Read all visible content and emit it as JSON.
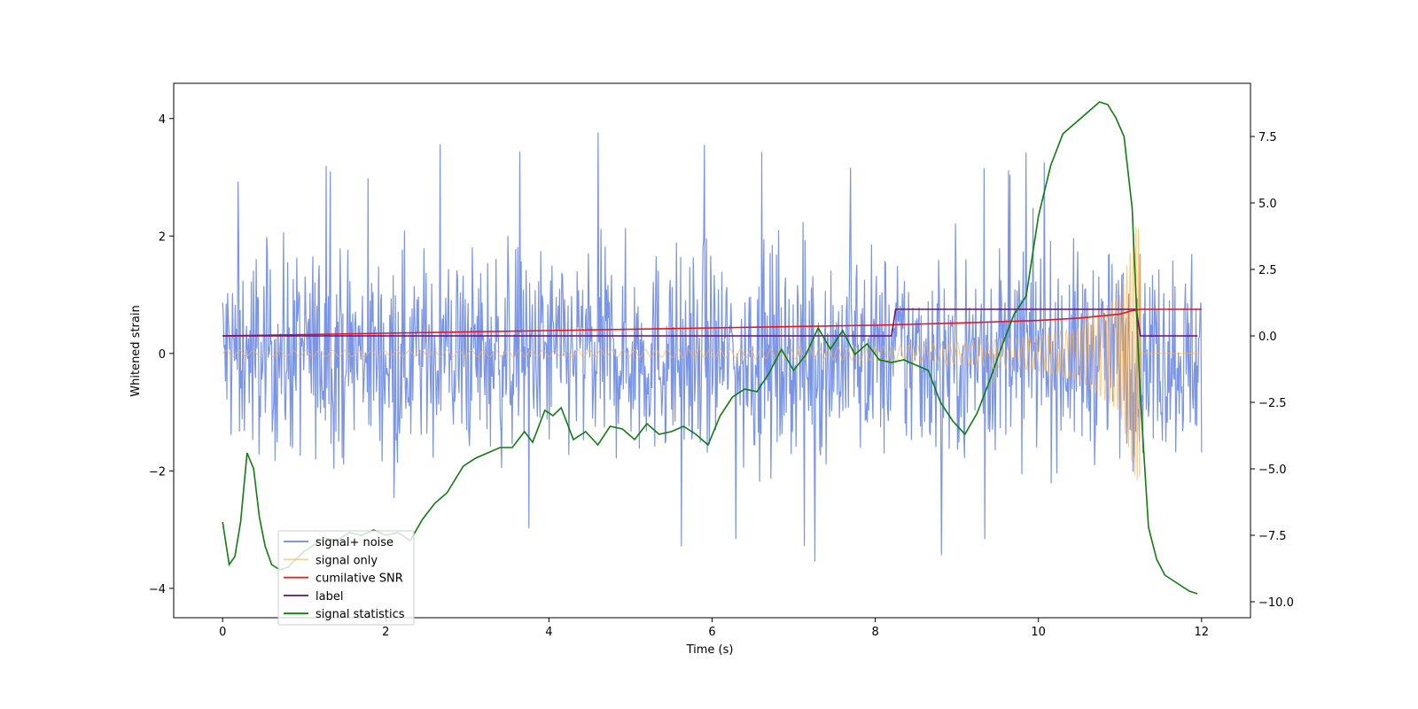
{
  "chart_data": {
    "type": "line",
    "xlabel": "Time (s)",
    "ylabel": "Whitened strain",
    "xlim": [
      -0.6,
      12.6
    ],
    "ylim": [
      -4.5,
      4.6
    ],
    "y2lim": [
      -10.6,
      9.5
    ],
    "x_ticks": [
      0,
      2,
      4,
      6,
      8,
      10,
      12
    ],
    "x_tick_labels": [
      "0",
      "2",
      "4",
      "6",
      "8",
      "10",
      "12"
    ],
    "y_ticks": [
      -4,
      -2,
      0,
      2,
      4
    ],
    "y_tick_labels": [
      "−4",
      "−2",
      "0",
      "2",
      "4"
    ],
    "y2_ticks": [
      -10.0,
      -7.5,
      -5.0,
      -2.5,
      0.0,
      2.5,
      5.0,
      7.5
    ],
    "y2_tick_labels": [
      "−10.0",
      "−7.5",
      "−5.0",
      "−2.5",
      "0.0",
      "2.5",
      "5.0",
      "7.5"
    ],
    "legend_position": "lower-left",
    "grid": false,
    "series": [
      {
        "name": "signal+ noise",
        "color": "#6b88e6",
        "axis": "left",
        "style": "noise",
        "x_range": [
          0,
          12
        ],
        "approx_std": 0.85,
        "envelope_upper": [
          [
            0,
            2.4
          ],
          [
            0.5,
            4.15
          ],
          [
            1,
            3.3
          ],
          [
            2,
            3.5
          ],
          [
            4,
            3.9
          ],
          [
            5.8,
            4.1
          ],
          [
            8,
            3.3
          ],
          [
            10,
            3.5
          ],
          [
            12,
            2.9
          ]
        ],
        "envelope_lower": [
          [
            0,
            -2.1
          ],
          [
            1,
            -3.3
          ],
          [
            2,
            -3.0
          ],
          [
            4,
            -3.1
          ],
          [
            6.3,
            -3.6
          ],
          [
            8.7,
            -3.7
          ],
          [
            10.4,
            -3.3
          ],
          [
            12,
            -2.9
          ]
        ]
      },
      {
        "name": "signal only",
        "color": "#ffb347",
        "axis": "left",
        "style": "chirp",
        "x_range": [
          0,
          12
        ],
        "amplitude_points": [
          [
            0,
            0.05
          ],
          [
            2,
            0.05
          ],
          [
            4,
            0.06
          ],
          [
            6,
            0.07
          ],
          [
            8,
            0.12
          ],
          [
            9,
            0.18
          ],
          [
            10,
            0.3
          ],
          [
            10.5,
            0.45
          ],
          [
            11,
            1.0
          ],
          [
            11.2,
            2.2
          ]
        ],
        "cutoff": 11.25,
        "after_cutoff_value": 0.0
      },
      {
        "name": "cumilative SNR",
        "color": "#e8141a",
        "axis": "right",
        "x": [
          0,
          2,
          4,
          6,
          8,
          9,
          10,
          10.5,
          11,
          11.15,
          11.25,
          12
        ],
        "y": [
          0.0,
          0.1,
          0.2,
          0.3,
          0.4,
          0.48,
          0.58,
          0.67,
          0.82,
          0.95,
          1.0,
          1.0
        ]
      },
      {
        "name": "label",
        "color": "#6b0f7a",
        "axis": "right",
        "x": [
          0,
          8.2,
          8.25,
          11.2,
          11.25,
          11.95
        ],
        "y": [
          0.0,
          0.0,
          1.0,
          1.0,
          0.0,
          0.0
        ]
      },
      {
        "name": "signal statistics",
        "color": "#0d7d0d",
        "axis": "right",
        "x": [
          0,
          0.08,
          0.15,
          0.22,
          0.3,
          0.38,
          0.45,
          0.52,
          0.6,
          0.7,
          0.8,
          0.9,
          1.0,
          1.1,
          1.25,
          1.4,
          1.55,
          1.7,
          1.85,
          2.0,
          2.15,
          2.3,
          2.45,
          2.6,
          2.75,
          2.85,
          2.95,
          3.1,
          3.25,
          3.4,
          3.55,
          3.7,
          3.8,
          3.95,
          4.05,
          4.15,
          4.3,
          4.45,
          4.6,
          4.75,
          4.9,
          5.05,
          5.2,
          5.35,
          5.5,
          5.65,
          5.8,
          5.95,
          6.1,
          6.25,
          6.4,
          6.55,
          6.7,
          6.85,
          7.0,
          7.15,
          7.3,
          7.45,
          7.6,
          7.75,
          7.9,
          8.05,
          8.2,
          8.35,
          8.5,
          8.65,
          8.8,
          8.95,
          9.1,
          9.25,
          9.4,
          9.55,
          9.7,
          9.85,
          10.0,
          10.15,
          10.3,
          10.45,
          10.6,
          10.75,
          10.85,
          10.95,
          11.05,
          11.15,
          11.25,
          11.35,
          11.45,
          11.55,
          11.7,
          11.85,
          11.95
        ],
        "y": [
          -7.0,
          -8.6,
          -8.3,
          -7.0,
          -4.4,
          -5.0,
          -6.8,
          -7.9,
          -8.6,
          -8.8,
          -8.7,
          -8.4,
          -8.1,
          -7.9,
          -7.6,
          -7.7,
          -7.4,
          -7.5,
          -7.3,
          -7.5,
          -7.4,
          -7.7,
          -6.9,
          -6.3,
          -5.9,
          -5.4,
          -4.9,
          -4.6,
          -4.4,
          -4.2,
          -4.2,
          -3.6,
          -4.0,
          -2.8,
          -3.0,
          -2.7,
          -3.9,
          -3.6,
          -4.1,
          -3.4,
          -3.5,
          -3.9,
          -3.3,
          -3.7,
          -3.6,
          -3.4,
          -3.7,
          -4.1,
          -3.0,
          -2.3,
          -2.0,
          -2.1,
          -1.4,
          -0.5,
          -1.3,
          -0.7,
          0.3,
          -0.5,
          0.2,
          -0.7,
          -0.3,
          -0.9,
          -1.0,
          -0.9,
          -1.1,
          -1.3,
          -2.5,
          -3.2,
          -3.7,
          -2.9,
          -1.7,
          -0.4,
          0.8,
          1.5,
          4.5,
          6.4,
          7.6,
          8.0,
          8.4,
          8.8,
          8.7,
          8.2,
          7.5,
          4.8,
          -2.3,
          -7.2,
          -8.4,
          -9.0,
          -9.3,
          -9.6,
          -9.7
        ]
      }
    ]
  }
}
